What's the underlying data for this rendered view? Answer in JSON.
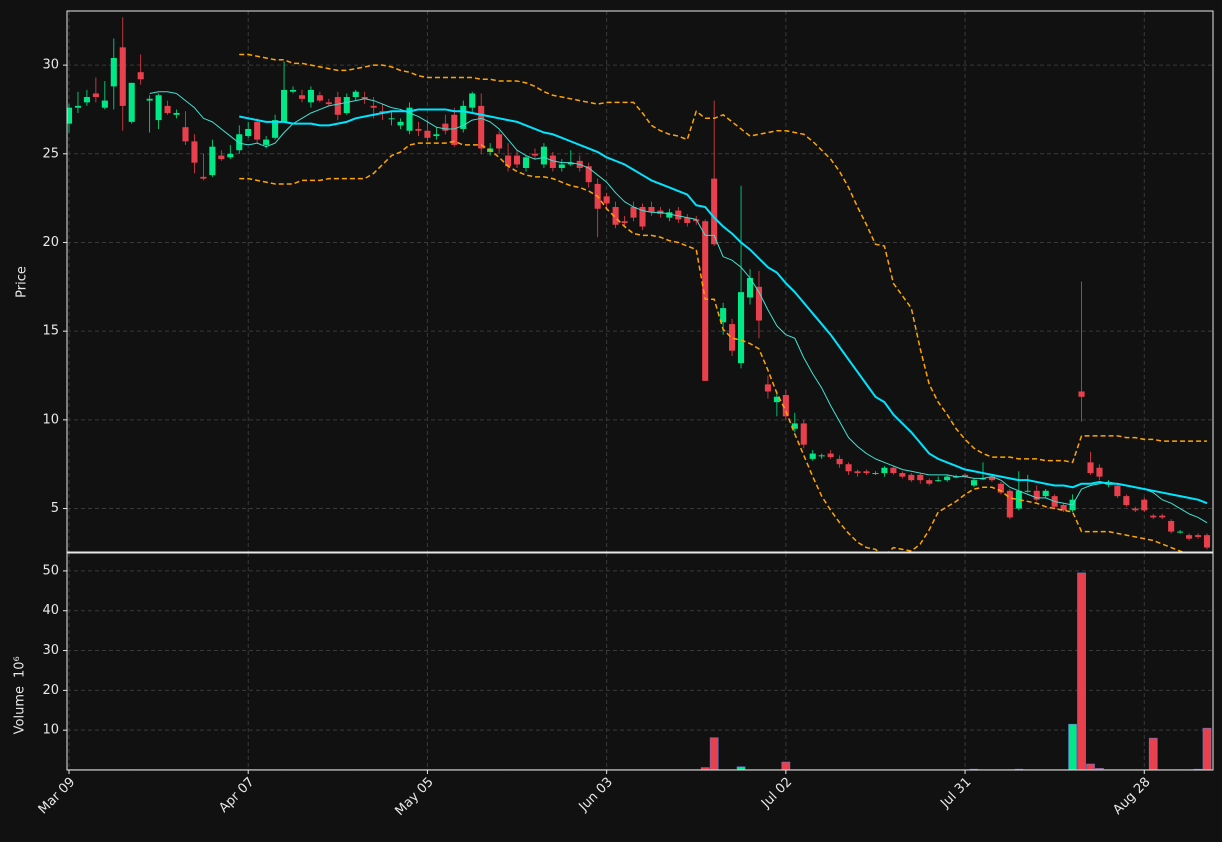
{
  "chart_data": {
    "type": "candlestick",
    "ylabel": "Price",
    "categories": [
      "Mar 09",
      null,
      null,
      null,
      null,
      null,
      null,
      null,
      null,
      null,
      null,
      null,
      null,
      null,
      null,
      null,
      null,
      null,
      null,
      null,
      "Apr 07",
      null,
      null,
      null,
      null,
      null,
      null,
      null,
      null,
      null,
      null,
      null,
      null,
      null,
      null,
      null,
      null,
      null,
      null,
      null,
      "May 05",
      null,
      null,
      null,
      null,
      null,
      null,
      null,
      null,
      null,
      null,
      null,
      null,
      null,
      null,
      null,
      null,
      null,
      null,
      null,
      "Jun 03",
      null,
      null,
      null,
      null,
      null,
      null,
      null,
      null,
      null,
      null,
      null,
      null,
      null,
      null,
      null,
      null,
      null,
      null,
      null,
      "Jul 02",
      null,
      null,
      null,
      null,
      null,
      null,
      null,
      null,
      null,
      null,
      null,
      null,
      null,
      null,
      null,
      null,
      null,
      null,
      null,
      "Jul 31",
      null,
      null,
      null,
      null,
      null,
      null,
      null,
      null,
      null,
      null,
      null,
      null,
      null,
      null,
      null,
      null,
      null,
      null,
      null,
      "Aug 28",
      null,
      null,
      null,
      null,
      null,
      null,
      null
    ],
    "open": [
      26.7,
      27.6,
      27.9,
      28.4,
      27.6,
      28.8,
      31.0,
      26.8,
      29.6,
      28.0,
      26.9,
      27.7,
      27.2,
      26.5,
      25.7,
      23.7,
      23.8,
      24.9,
      24.8,
      25.2,
      26.0,
      26.8,
      25.5,
      25.9,
      26.8,
      28.5,
      28.3,
      27.9,
      28.3,
      27.9,
      28.2,
      27.3,
      28.2,
      28.2,
      27.7,
      27.4,
      27.0,
      26.6,
      26.3,
      26.4,
      26.3,
      26.0,
      26.7,
      27.2,
      26.4,
      27.6,
      27.7,
      25.1,
      26.1,
      24.9,
      24.9,
      24.2,
      25.0,
      24.4,
      24.9,
      24.2,
      24.4,
      24.6,
      24.3,
      23.3,
      22.6,
      22.0,
      21.2,
      22.0,
      22.0,
      22.0,
      21.8,
      21.4,
      21.8,
      21.4,
      21.3,
      21.2,
      23.6,
      15.5,
      15.4,
      13.2,
      16.9,
      17.5,
      12.0,
      11.0,
      11.4,
      9.5,
      9.8,
      7.8,
      8.0,
      8.1,
      7.8,
      7.5,
      7.1,
      7.1,
      7.0,
      7.0,
      7.3,
      7.0,
      6.9,
      6.9,
      6.6,
      6.6,
      6.6,
      6.8,
      6.9,
      6.3,
      6.7,
      6.8,
      6.4,
      6.0,
      5.0,
      6.0,
      6.0,
      5.7,
      5.7,
      5.2,
      4.9,
      11.6,
      7.6,
      7.3,
      6.4,
      6.3,
      5.7,
      5.0,
      5.5,
      4.6,
      4.6,
      4.3,
      3.7,
      3.5,
      3.5,
      3.5
    ],
    "high": [
      27.8,
      28.5,
      28.6,
      29.3,
      29.1,
      31.5,
      32.7,
      29.0,
      30.6,
      28.3,
      28.4,
      28.0,
      27.5,
      27.4,
      26.1,
      25.0,
      25.8,
      25.2,
      25.5,
      26.6,
      26.8,
      27.0,
      26.0,
      27.2,
      30.2,
      28.8,
      28.6,
      28.8,
      28.5,
      28.1,
      28.5,
      28.4,
      28.6,
      28.5,
      28.2,
      27.8,
      27.4,
      27.0,
      27.9,
      26.8,
      26.9,
      26.5,
      27.2,
      27.6,
      28.0,
      28.5,
      28.4,
      25.6,
      26.3,
      25.6,
      25.2,
      24.9,
      25.3,
      25.6,
      25.1,
      24.7,
      25.2,
      24.9,
      24.5,
      23.6,
      22.8,
      22.3,
      21.5,
      22.3,
      22.2,
      22.3,
      22.0,
      21.9,
      22.0,
      21.6,
      21.5,
      21.3,
      28.0,
      16.6,
      15.7,
      23.2,
      18.5,
      18.4,
      12.5,
      11.6,
      11.7,
      10.4,
      10.0,
      8.3,
      8.1,
      8.3,
      8.0,
      7.6,
      7.2,
      7.2,
      7.1,
      7.4,
      7.4,
      7.1,
      7.0,
      7.0,
      6.7,
      6.8,
      6.9,
      6.9,
      7.0,
      6.7,
      7.6,
      6.9,
      6.5,
      6.1,
      7.1,
      6.9,
      6.3,
      6.1,
      5.8,
      5.3,
      5.8,
      17.8,
      8.2,
      7.5,
      6.6,
      6.4,
      5.8,
      5.1,
      5.6,
      4.7,
      4.7,
      4.4,
      3.8,
      3.6,
      3.6,
      3.6
    ],
    "low": [
      26.2,
      27.3,
      27.7,
      27.9,
      27.5,
      27.5,
      26.3,
      26.7,
      28.9,
      26.2,
      26.4,
      27.2,
      27.0,
      25.5,
      23.9,
      23.5,
      23.7,
      24.6,
      24.7,
      25.0,
      25.9,
      25.6,
      25.3,
      25.8,
      26.8,
      28.4,
      27.9,
      27.6,
      27.9,
      27.7,
      26.9,
      27.2,
      28.0,
      27.8,
      27.0,
      26.9,
      26.6,
      26.4,
      26.1,
      26.0,
      25.7,
      25.8,
      26.1,
      25.4,
      26.2,
      27.3,
      25.0,
      24.9,
      25.0,
      24.0,
      24.2,
      24.0,
      24.7,
      24.2,
      24.0,
      24.0,
      24.3,
      24.0,
      23.1,
      20.3,
      21.9,
      20.8,
      20.9,
      21.2,
      20.7,
      21.5,
      21.4,
      21.2,
      21.1,
      20.9,
      21.0,
      12.2,
      19.8,
      14.8,
      13.6,
      12.9,
      16.5,
      14.6,
      11.2,
      10.2,
      10.0,
      9.3,
      8.4,
      7.7,
      7.8,
      7.8,
      7.3,
      6.9,
      6.8,
      6.9,
      6.9,
      6.8,
      6.9,
      6.7,
      6.5,
      6.4,
      6.3,
      6.5,
      6.5,
      6.7,
      6.7,
      6.2,
      6.6,
      6.5,
      5.8,
      4.4,
      4.9,
      5.9,
      5.4,
      5.6,
      5.0,
      4.8,
      4.8,
      9.9,
      6.9,
      6.6,
      6.2,
      5.6,
      5.1,
      4.8,
      4.8,
      4.4,
      4.4,
      3.6,
      3.6,
      3.2,
      3.3,
      2.7
    ],
    "close": [
      27.6,
      27.7,
      28.2,
      28.2,
      28.0,
      30.4,
      27.7,
      29.0,
      29.2,
      28.1,
      28.3,
      27.3,
      27.3,
      25.7,
      24.5,
      23.6,
      25.4,
      24.7,
      25.0,
      26.1,
      26.4,
      25.8,
      25.8,
      26.9,
      28.6,
      28.6,
      28.1,
      28.6,
      28.0,
      27.8,
      27.2,
      28.2,
      28.5,
      28.1,
      27.6,
      27.3,
      27.0,
      26.8,
      27.6,
      26.3,
      25.9,
      26.1,
      26.3,
      25.5,
      27.7,
      28.4,
      25.3,
      25.3,
      25.3,
      24.3,
      24.4,
      24.8,
      24.9,
      25.4,
      24.2,
      24.4,
      24.5,
      24.2,
      23.4,
      21.9,
      22.2,
      21.0,
      21.1,
      21.4,
      20.9,
      21.7,
      21.6,
      21.7,
      21.3,
      21.1,
      21.2,
      12.2,
      19.9,
      16.3,
      13.9,
      17.2,
      18.0,
      15.6,
      11.6,
      11.3,
      10.2,
      9.8,
      8.6,
      8.1,
      8.0,
      7.9,
      7.5,
      7.1,
      7.0,
      7.0,
      7.0,
      7.3,
      7.0,
      6.8,
      6.6,
      6.6,
      6.4,
      6.6,
      6.8,
      6.8,
      6.8,
      6.6,
      6.7,
      6.6,
      5.9,
      4.5,
      6.0,
      6.0,
      5.5,
      6.0,
      5.1,
      4.9,
      5.5,
      11.3,
      7.0,
      6.8,
      6.4,
      5.7,
      5.2,
      4.9,
      4.9,
      4.5,
      4.5,
      3.7,
      3.7,
      3.3,
      3.4,
      2.8
    ],
    "ylim": [
      2.55,
      33.05
    ],
    "yticks": [
      5,
      10,
      15,
      20,
      25,
      30
    ],
    "grid": true,
    "up_color": "#00e887",
    "down_color": "#e8404c",
    "lines": [
      {
        "color": "#40e0d0",
        "width": 1,
        "dashed": false,
        "values": [
          null,
          null,
          null,
          null,
          null,
          null,
          null,
          null,
          null,
          28.4,
          28.5,
          28.5,
          28.4,
          28.0,
          27.6,
          27.0,
          26.8,
          26.4,
          26.0,
          25.6,
          25.5,
          25.6,
          25.4,
          25.6,
          26.2,
          26.7,
          27.0,
          27.3,
          27.5,
          27.7,
          27.8,
          27.9,
          28.0,
          28.1,
          28.0,
          27.8,
          27.6,
          27.5,
          27.3,
          27.1,
          26.8,
          26.5,
          26.4,
          26.4,
          26.6,
          26.9,
          27.0,
          26.8,
          26.4,
          25.8,
          25.2,
          24.9,
          24.7,
          24.8,
          24.6,
          24.5,
          24.5,
          24.4,
          24.2,
          23.8,
          23.4,
          22.8,
          22.3,
          22.0,
          21.8,
          21.7,
          21.7,
          21.6,
          21.5,
          21.4,
          21.3,
          20.4,
          20.4,
          19.2,
          19.0,
          18.6,
          18.0,
          17.2,
          16.2,
          15.3,
          14.8,
          14.6,
          13.5,
          12.6,
          11.8,
          10.8,
          9.9,
          9.0,
          8.5,
          8.1,
          7.8,
          7.6,
          7.4,
          7.2,
          7.1,
          7.0,
          6.9,
          6.9,
          6.9,
          6.8,
          6.8,
          6.7,
          6.7,
          6.8,
          6.6,
          6.2,
          6.0,
          5.8,
          5.6,
          5.6,
          5.4,
          5.3,
          5.2,
          6.1,
          6.3,
          6.4,
          6.5,
          6.4,
          6.3,
          6.2,
          6.1,
          5.9,
          5.5,
          5.3,
          5.0,
          4.7,
          4.5,
          4.2
        ]
      },
      {
        "color": "#00e5ff",
        "width": 2,
        "dashed": false,
        "values": [
          null,
          null,
          null,
          null,
          null,
          null,
          null,
          null,
          null,
          null,
          null,
          null,
          null,
          null,
          null,
          null,
          null,
          null,
          null,
          27.1,
          27.0,
          26.9,
          26.8,
          26.8,
          26.8,
          26.7,
          26.7,
          26.7,
          26.6,
          26.6,
          26.7,
          26.8,
          27.0,
          27.1,
          27.2,
          27.3,
          27.4,
          27.4,
          27.4,
          27.5,
          27.5,
          27.5,
          27.5,
          27.4,
          27.4,
          27.3,
          27.2,
          27.1,
          27.0,
          26.9,
          26.8,
          26.6,
          26.4,
          26.2,
          26.1,
          25.9,
          25.7,
          25.5,
          25.3,
          25.1,
          24.8,
          24.6,
          24.4,
          24.1,
          23.8,
          23.5,
          23.3,
          23.1,
          22.9,
          22.7,
          22.1,
          22.0,
          21.4,
          20.9,
          20.5,
          20.0,
          19.6,
          19.1,
          18.6,
          18.3,
          17.7,
          17.2,
          16.6,
          16.0,
          15.4,
          14.8,
          14.1,
          13.4,
          12.7,
          12.0,
          11.3,
          11.0,
          10.3,
          9.8,
          9.3,
          8.7,
          8.1,
          7.8,
          7.6,
          7.4,
          7.2,
          7.1,
          7.0,
          6.9,
          6.8,
          6.7,
          6.6,
          6.6,
          6.5,
          6.4,
          6.3,
          6.3,
          6.2,
          6.4,
          6.4,
          6.5,
          6.4,
          6.4,
          6.3,
          6.2,
          6.1,
          6.0,
          5.9,
          5.8,
          5.7,
          5.6,
          5.5,
          5.3
        ]
      },
      {
        "color": "#ffa500",
        "width": 1.5,
        "dashed": true,
        "values": [
          null,
          null,
          null,
          null,
          null,
          null,
          null,
          null,
          null,
          null,
          null,
          null,
          null,
          null,
          null,
          null,
          null,
          null,
          null,
          30.6,
          30.6,
          30.5,
          30.4,
          30.3,
          30.3,
          30.1,
          30.1,
          30.0,
          29.9,
          29.8,
          29.7,
          29.7,
          29.8,
          29.9,
          30.0,
          30.0,
          29.9,
          29.7,
          29.6,
          29.4,
          29.3,
          29.3,
          29.3,
          29.3,
          29.3,
          29.3,
          29.2,
          29.2,
          29.1,
          29.1,
          29.1,
          29.0,
          28.8,
          28.5,
          28.3,
          28.2,
          28.1,
          28.0,
          27.9,
          27.8,
          27.9,
          27.9,
          27.9,
          27.9,
          27.3,
          26.6,
          26.3,
          26.1,
          26.0,
          25.8,
          27.4,
          27.0,
          27.0,
          27.2,
          26.8,
          26.4,
          26.0,
          26.1,
          26.2,
          26.3,
          26.3,
          26.2,
          26.1,
          25.7,
          25.2,
          24.7,
          24.0,
          23.1,
          22.0,
          21.0,
          19.9,
          19.8,
          17.7,
          17.0,
          16.3,
          14.0,
          12.0,
          11.0,
          10.3,
          9.5,
          8.9,
          8.4,
          8.1,
          7.9,
          7.9,
          7.9,
          7.8,
          7.8,
          7.8,
          7.7,
          7.7,
          7.7,
          7.6,
          9.1,
          9.1,
          9.1,
          9.1,
          9.1,
          9.0,
          9.0,
          8.9,
          8.9,
          8.8,
          8.8,
          8.8,
          8.8,
          8.8,
          8.8
        ]
      },
      {
        "color": "#ffa500",
        "width": 1.5,
        "dashed": true,
        "values": [
          null,
          null,
          null,
          null,
          null,
          null,
          null,
          null,
          null,
          null,
          null,
          null,
          null,
          null,
          null,
          null,
          null,
          null,
          null,
          23.6,
          23.6,
          23.5,
          23.4,
          23.3,
          23.3,
          23.3,
          23.5,
          23.5,
          23.5,
          23.6,
          23.6,
          23.6,
          23.6,
          23.6,
          23.9,
          24.4,
          24.9,
          25.1,
          25.5,
          25.6,
          25.6,
          25.6,
          25.6,
          25.7,
          25.5,
          25.5,
          25.5,
          25.2,
          24.8,
          24.3,
          24.0,
          23.8,
          23.7,
          23.7,
          23.6,
          23.4,
          23.2,
          23.1,
          22.9,
          22.6,
          21.9,
          21.4,
          20.9,
          20.5,
          20.4,
          20.4,
          20.3,
          20.1,
          20.0,
          19.8,
          19.6,
          16.8,
          16.8,
          15.1,
          14.6,
          14.5,
          14.3,
          14.0,
          12.8,
          11.5,
          10.5,
          9.2,
          8.0,
          6.8,
          5.7,
          4.9,
          4.2,
          3.6,
          3.1,
          2.8,
          2.7,
          2.3,
          2.8,
          2.7,
          2.6,
          3.0,
          3.8,
          4.8,
          5.1,
          5.4,
          5.8,
          6.1,
          6.2,
          6.2,
          6.0,
          5.6,
          5.5,
          5.4,
          5.3,
          5.1,
          5.0,
          4.9,
          4.8,
          3.7,
          3.7,
          3.7,
          3.7,
          3.6,
          3.5,
          3.4,
          3.3,
          3.2,
          3.0,
          2.8,
          2.6,
          2.4,
          2.2,
          2.0
        ]
      }
    ],
    "volume": {
      "ylabel": "Volume",
      "unit": "10⁶",
      "ylim": [
        0,
        54.5
      ],
      "yticks": [
        10,
        20,
        30,
        40,
        50
      ],
      "values": [
        0.1,
        0.1,
        0.1,
        0.1,
        0.1,
        0.1,
        0.1,
        0.1,
        0.1,
        0.1,
        0.1,
        0.1,
        0.1,
        0.1,
        0.1,
        0.1,
        0.1,
        0.1,
        0.1,
        0.1,
        0.1,
        0.1,
        0.1,
        0.1,
        0.1,
        0.1,
        0.1,
        0.1,
        0.1,
        0.1,
        0.1,
        0.1,
        0.1,
        0.1,
        0.1,
        0.1,
        0.1,
        0.1,
        0.1,
        0.1,
        0.1,
        0.1,
        0.1,
        0.1,
        0.1,
        0.1,
        0.1,
        0.1,
        0.1,
        0.1,
        0.1,
        0.1,
        0.1,
        0.1,
        0.1,
        0.1,
        0.1,
        0.1,
        0.1,
        0.1,
        0.1,
        0.1,
        0.1,
        0.1,
        0.1,
        0.1,
        0.1,
        0.1,
        0.1,
        0.1,
        0.1,
        0.6,
        8.1,
        0.1,
        0.1,
        0.8,
        0.1,
        0.1,
        0.1,
        0.1,
        2.0,
        0.1,
        0.1,
        0.1,
        0.1,
        0.1,
        0.1,
        0.1,
        0.1,
        0.1,
        0.1,
        0.1,
        0.1,
        0.1,
        0.1,
        0.1,
        0.1,
        0.1,
        0.1,
        0.1,
        0.1,
        0.2,
        0.1,
        0.1,
        0.1,
        0.1,
        0.2,
        0.1,
        0.1,
        0.1,
        0.1,
        0.1,
        11.5,
        49.5,
        1.5,
        0.4,
        0.1,
        0.1,
        0.1,
        0.1,
        0.1,
        8.0,
        0.1,
        0.1,
        0.1,
        0.1,
        0.2,
        10.5
      ]
    }
  }
}
